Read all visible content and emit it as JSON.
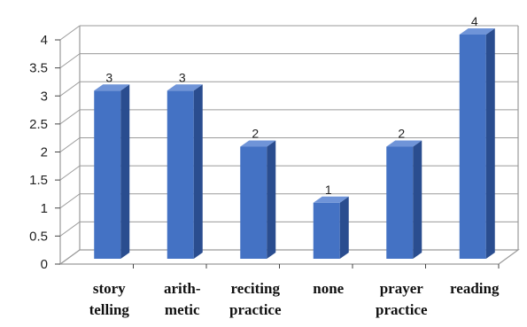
{
  "chart_data": {
    "type": "bar",
    "categories": [
      [
        "story",
        "telling"
      ],
      [
        "arith-",
        "metic"
      ],
      [
        "reciting",
        "practice"
      ],
      [
        "none"
      ],
      [
        "prayer",
        "practice"
      ],
      [
        "reading"
      ]
    ],
    "values": [
      3,
      3,
      2,
      1,
      2,
      4
    ],
    "data_labels": [
      "3",
      "3",
      "2",
      "1",
      "2",
      "4"
    ],
    "yticks": [
      "0",
      "0.5",
      "1",
      "1.5",
      "2",
      "2.5",
      "3",
      "3.5",
      "4"
    ],
    "ylim": [
      0,
      4
    ],
    "title": "",
    "xlabel": "",
    "ylabel": "",
    "grid": true,
    "style": "3d",
    "colors": {
      "bar_front": "#4472c4",
      "bar_side": "#2a4d8f",
      "bar_top": "#6f94d8",
      "grid": "#9a9a9a"
    }
  }
}
